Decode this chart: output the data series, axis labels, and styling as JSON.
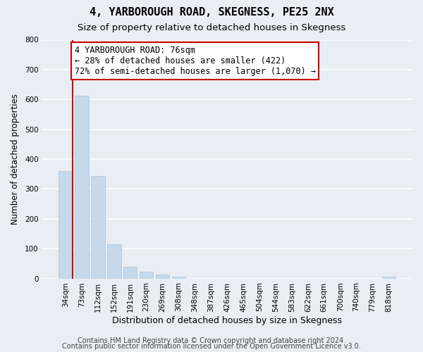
{
  "title": "4, YARBOROUGH ROAD, SKEGNESS, PE25 2NX",
  "subtitle": "Size of property relative to detached houses in Skegness",
  "xlabel": "Distribution of detached houses by size in Skegness",
  "ylabel": "Number of detached properties",
  "bin_labels": [
    "34sqm",
    "73sqm",
    "112sqm",
    "152sqm",
    "191sqm",
    "230sqm",
    "269sqm",
    "308sqm",
    "348sqm",
    "387sqm",
    "426sqm",
    "465sqm",
    "504sqm",
    "544sqm",
    "583sqm",
    "622sqm",
    "661sqm",
    "700sqm",
    "740sqm",
    "779sqm",
    "818sqm"
  ],
  "bar_heights": [
    360,
    612,
    343,
    114,
    40,
    22,
    13,
    5,
    0,
    0,
    0,
    0,
    0,
    0,
    0,
    0,
    0,
    0,
    0,
    0,
    5
  ],
  "bar_color": "#c5d9ea",
  "bar_edge_color": "#aac4da",
  "highlight_line_color": "#cc0000",
  "ylim": [
    0,
    800
  ],
  "yticks": [
    0,
    100,
    200,
    300,
    400,
    500,
    600,
    700,
    800
  ],
  "annotation_text": "4 YARBOROUGH ROAD: 76sqm\n← 28% of detached houses are smaller (422)\n72% of semi-detached houses are larger (1,070) →",
  "annotation_box_color": "white",
  "annotation_box_edge": "#cc0000",
  "footer_line1": "Contains HM Land Registry data © Crown copyright and database right 2024.",
  "footer_line2": "Contains public sector information licensed under the Open Government Licence v3.0.",
  "background_color": "#e8eef4",
  "plot_bg_color": "#e8eef4",
  "grid_color": "white",
  "title_fontsize": 11,
  "subtitle_fontsize": 9.5,
  "xlabel_fontsize": 9,
  "ylabel_fontsize": 8.5,
  "tick_fontsize": 7.5,
  "annotation_fontsize": 8.5,
  "footer_fontsize": 7
}
